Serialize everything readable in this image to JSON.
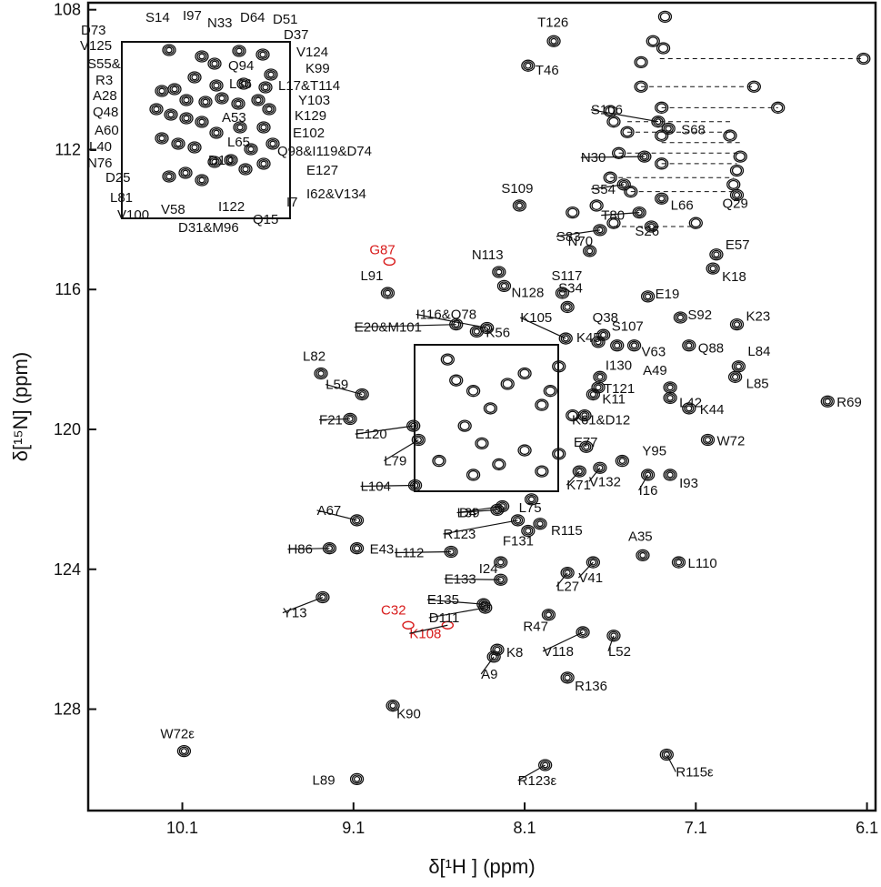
{
  "chart_data": {
    "type": "scatter",
    "title": "",
    "xlabel": "δ[¹H ] (ppm)",
    "ylabel": "δ[¹⁵N] (ppm)",
    "xlim": [
      10.65,
      6.05
    ],
    "ylim": [
      107.8,
      130.9
    ],
    "x_ticks": [
      "10.1",
      "9.1",
      "8.1",
      "7.1",
      "6.1"
    ],
    "y_ticks": [
      "108",
      "112",
      "116",
      "120",
      "124",
      "128"
    ],
    "x_tick_values": [
      10.1,
      9.1,
      8.1,
      7.1,
      6.1
    ],
    "y_tick_values": [
      108,
      112,
      116,
      120,
      124,
      128
    ],
    "grid": false,
    "legend": "none",
    "colors": {
      "peak": "#111111",
      "unassigned": "#d81b1b"
    },
    "inset_region": {
      "x_range": [
        8.67,
        7.73
      ],
      "y_range": [
        117.4,
        121.5
      ]
    },
    "peaks": [
      {
        "label": "T126",
        "h": 7.93,
        "n": 108.9
      },
      {
        "label": "T46",
        "h": 8.08,
        "n": 109.6
      },
      {
        "label": "S109",
        "h": 8.13,
        "n": 113.6
      },
      {
        "label": "N70",
        "h": 7.72,
        "n": 114.9
      },
      {
        "label": "N113",
        "h": 8.25,
        "n": 115.5
      },
      {
        "label": "N128",
        "h": 8.22,
        "n": 115.9
      },
      {
        "label": "S34",
        "h": 7.85,
        "n": 116.5
      },
      {
        "label": "S117",
        "h": 7.88,
        "n": 116.1
      },
      {
        "label": "E57",
        "h": 6.98,
        "n": 115.0
      },
      {
        "label": "K18",
        "h": 7.0,
        "n": 115.4
      },
      {
        "label": "E19",
        "h": 7.38,
        "n": 116.2
      },
      {
        "label": "S92",
        "h": 7.19,
        "n": 116.8
      },
      {
        "label": "K23",
        "h": 6.86,
        "n": 117.0
      },
      {
        "label": "Q88",
        "h": 7.14,
        "n": 117.6
      },
      {
        "label": "L91",
        "h": 8.9,
        "n": 116.1
      },
      {
        "label": "E20&M101",
        "h": 8.5,
        "n": 117.0
      },
      {
        "label": "I116&Q78",
        "h": 8.32,
        "n": 117.1
      },
      {
        "label": "K56",
        "h": 8.38,
        "n": 117.2
      },
      {
        "label": "K105",
        "h": 7.86,
        "n": 117.4
      },
      {
        "label": "K45",
        "h": 7.67,
        "n": 117.5
      },
      {
        "label": "Q38",
        "h": 7.64,
        "n": 117.3
      },
      {
        "label": "S107",
        "h": 7.56,
        "n": 117.6
      },
      {
        "label": "V63",
        "h": 7.46,
        "n": 117.6
      },
      {
        "label": "L82",
        "h": 9.29,
        "n": 118.4
      },
      {
        "label": "L84",
        "h": 6.85,
        "n": 118.2
      },
      {
        "label": "L85",
        "h": 6.87,
        "n": 118.5
      },
      {
        "label": "I130",
        "h": 7.66,
        "n": 118.5
      },
      {
        "label": "T121",
        "h": 7.67,
        "n": 118.8
      },
      {
        "label": "A49",
        "h": 7.25,
        "n": 118.8
      },
      {
        "label": "L42",
        "h": 7.25,
        "n": 119.1
      },
      {
        "label": "L59",
        "h": 9.05,
        "n": 119.0
      },
      {
        "label": "K11",
        "h": 7.7,
        "n": 119.0
      },
      {
        "label": "K44",
        "h": 7.14,
        "n": 119.4
      },
      {
        "label": "R69",
        "h": 6.33,
        "n": 119.2
      },
      {
        "label": "K61&D12",
        "h": 7.75,
        "n": 119.6
      },
      {
        "label": "F21",
        "h": 9.12,
        "n": 119.7
      },
      {
        "label": "E120",
        "h": 8.75,
        "n": 119.9
      },
      {
        "label": "L79",
        "h": 8.72,
        "n": 120.3
      },
      {
        "label": "W72",
        "h": 7.03,
        "n": 120.3
      },
      {
        "label": "E77",
        "h": 7.74,
        "n": 120.5
      },
      {
        "label": "Y95",
        "h": 7.53,
        "n": 120.9
      },
      {
        "label": "V132",
        "h": 7.66,
        "n": 121.1
      },
      {
        "label": "K71",
        "h": 7.78,
        "n": 121.2
      },
      {
        "label": "I16",
        "h": 7.38,
        "n": 121.3
      },
      {
        "label": "I93",
        "h": 7.25,
        "n": 121.3
      },
      {
        "label": "L104",
        "h": 8.74,
        "n": 121.6
      },
      {
        "label": "D4",
        "h": 8.26,
        "n": 122.3
      },
      {
        "label": "L75",
        "h": 8.06,
        "n": 122.0
      },
      {
        "label": "L39",
        "h": 8.23,
        "n": 122.2
      },
      {
        "label": "R123",
        "h": 8.14,
        "n": 122.6
      },
      {
        "label": "R115",
        "h": 8.01,
        "n": 122.7
      },
      {
        "label": "F131",
        "h": 8.08,
        "n": 122.9
      },
      {
        "label": "A67",
        "h": 9.08,
        "n": 122.6
      },
      {
        "label": "H86",
        "h": 9.24,
        "n": 123.4
      },
      {
        "label": "E43",
        "h": 9.08,
        "n": 123.4
      },
      {
        "label": "L112",
        "h": 8.53,
        "n": 123.5
      },
      {
        "label": "A35",
        "h": 7.41,
        "n": 123.6
      },
      {
        "label": "L110",
        "h": 7.2,
        "n": 123.8
      },
      {
        "label": "I24",
        "h": 8.24,
        "n": 123.8
      },
      {
        "label": "V41",
        "h": 7.7,
        "n": 123.8
      },
      {
        "label": "L27",
        "h": 7.85,
        "n": 124.1
      },
      {
        "label": "E133",
        "h": 8.24,
        "n": 124.3
      },
      {
        "label": "Y13",
        "h": 9.28,
        "n": 124.8
      },
      {
        "label": "E135",
        "h": 8.34,
        "n": 125.0
      },
      {
        "label": "D111",
        "h": 8.33,
        "n": 125.1
      },
      {
        "label": "R47",
        "h": 7.96,
        "n": 125.3
      },
      {
        "label": "V118",
        "h": 7.76,
        "n": 125.8
      },
      {
        "label": "L52",
        "h": 7.58,
        "n": 125.9
      },
      {
        "label": "K8",
        "h": 8.26,
        "n": 126.3
      },
      {
        "label": "A9",
        "h": 8.28,
        "n": 126.5
      },
      {
        "label": "R136",
        "h": 7.85,
        "n": 127.1
      },
      {
        "label": "K90",
        "h": 8.87,
        "n": 127.9
      },
      {
        "label": "W72ε",
        "h": 10.09,
        "n": 129.2
      },
      {
        "label": "L89",
        "h": 9.08,
        "n": 130.0
      },
      {
        "label": "R123ε",
        "h": 7.98,
        "n": 129.6
      },
      {
        "label": "R115ε",
        "h": 7.27,
        "n": 129.3
      },
      {
        "label": "S106",
        "h": 7.32,
        "n": 111.2
      },
      {
        "label": "S68",
        "h": 7.26,
        "n": 111.4
      },
      {
        "label": "N30",
        "h": 7.4,
        "n": 112.2
      },
      {
        "label": "S54",
        "h": 7.52,
        "n": 113.0
      },
      {
        "label": "L66",
        "h": 7.3,
        "n": 113.4
      },
      {
        "label": "Q29",
        "h": 6.86,
        "n": 113.3
      },
      {
        "label": "T80",
        "h": 7.43,
        "n": 113.8
      },
      {
        "label": "S83",
        "h": 7.66,
        "n": 114.3
      },
      {
        "label": "S26",
        "h": 7.36,
        "n": 114.2
      },
      {
        "label": "G87",
        "h": 8.89,
        "n": 115.2,
        "unassigned": true
      },
      {
        "label": "C32",
        "h": 8.78,
        "n": 125.6,
        "unassigned": true
      },
      {
        "label": "K108",
        "h": 8.55,
        "n": 125.6,
        "unassigned": true
      }
    ],
    "inset_labels": [
      "S14",
      "I97",
      "N33",
      "D64",
      "D51",
      "D37",
      "V124",
      "D73",
      "V125",
      "S55&",
      "R3",
      "A28",
      "Q48",
      "A60",
      "L40",
      "N76",
      "D25",
      "L81",
      "V100",
      "V58",
      "D31&M96",
      "I122",
      "Q15",
      "I7",
      "I62&V134",
      "E127",
      "Q98&I119&D74",
      "E102",
      "K129",
      "Y103",
      "L17&T114",
      "K99",
      "Q94",
      "L36",
      "A53",
      "L65",
      "D10"
    ]
  }
}
